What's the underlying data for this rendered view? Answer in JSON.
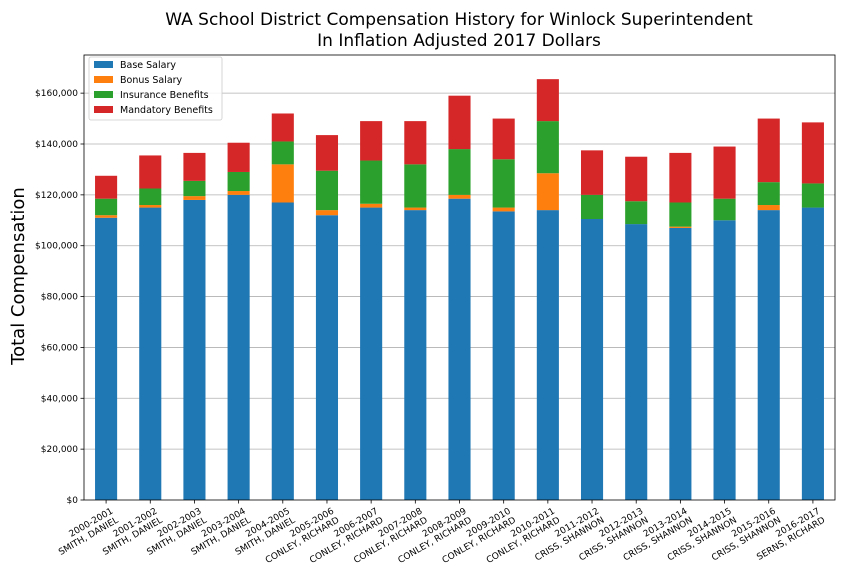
{
  "chart_data": {
    "type": "bar",
    "stacked": true,
    "title": "WA School District Compensation History for Winlock Superintendent",
    "subtitle": "In Inflation Adjusted 2017 Dollars",
    "xlabel": "",
    "ylabel": "Total Compensation",
    "ylim": [
      0,
      175000
    ],
    "yticks": [
      0,
      20000,
      40000,
      60000,
      80000,
      100000,
      120000,
      140000,
      160000
    ],
    "ytick_labels": [
      "$0",
      "$20,000",
      "$40,000",
      "$60,000",
      "$80,000",
      "$100,000",
      "$120,000",
      "$140,000",
      "$160,000"
    ],
    "grid": "y",
    "legend_position": "top-left",
    "categories": [
      [
        "2000-2001",
        "SMITH, DANIEL"
      ],
      [
        "2001-2002",
        "SMITH, DANIEL"
      ],
      [
        "2002-2003",
        "SMITH, DANIEL"
      ],
      [
        "2003-2004",
        "SMITH, DANIEL"
      ],
      [
        "2004-2005",
        "SMITH, DANIEL"
      ],
      [
        "2005-2006",
        "CONLEY, RICHARD"
      ],
      [
        "2006-2007",
        "CONLEY, RICHARD"
      ],
      [
        "2007-2008",
        "CONLEY, RICHARD"
      ],
      [
        "2008-2009",
        "CONLEY, RICHARD"
      ],
      [
        "2009-2010",
        "CONLEY, RICHARD"
      ],
      [
        "2010-2011",
        "CONLEY, RICHARD"
      ],
      [
        "2011-2012",
        "CRISS, SHANNON"
      ],
      [
        "2012-2013",
        "CRISS, SHANNON"
      ],
      [
        "2013-2014",
        "CRISS, SHANNON"
      ],
      [
        "2014-2015",
        "CRISS, SHANNON"
      ],
      [
        "2015-2016",
        "CRISS, SHANNON"
      ],
      [
        "2016-2017",
        "SERNS, RICHARD"
      ]
    ],
    "series": [
      {
        "name": "Base Salary",
        "color": "#1f77b4",
        "values": [
          111000,
          115000,
          118000,
          120000,
          117000,
          112000,
          115000,
          114000,
          118500,
          113500,
          114000,
          110500,
          108500,
          107000,
          110000,
          114000,
          115000
        ]
      },
      {
        "name": "Bonus Salary",
        "color": "#ff7f0e",
        "values": [
          1000,
          1000,
          1500,
          1500,
          15000,
          2000,
          1500,
          1000,
          1500,
          1500,
          14500,
          0,
          0,
          500,
          0,
          2000,
          0
        ]
      },
      {
        "name": "Insurance Benefits",
        "color": "#2ca02c",
        "values": [
          6500,
          6500,
          6000,
          7500,
          9000,
          15500,
          17000,
          17000,
          18000,
          19000,
          20500,
          9500,
          9000,
          9500,
          8500,
          9000,
          9500
        ]
      },
      {
        "name": "Mandatory Benefits",
        "color": "#d62728",
        "values": [
          9000,
          13000,
          11000,
          11500,
          11000,
          14000,
          15500,
          17000,
          21000,
          16000,
          16500,
          17500,
          17500,
          19500,
          20500,
          25000,
          24000
        ]
      }
    ]
  }
}
